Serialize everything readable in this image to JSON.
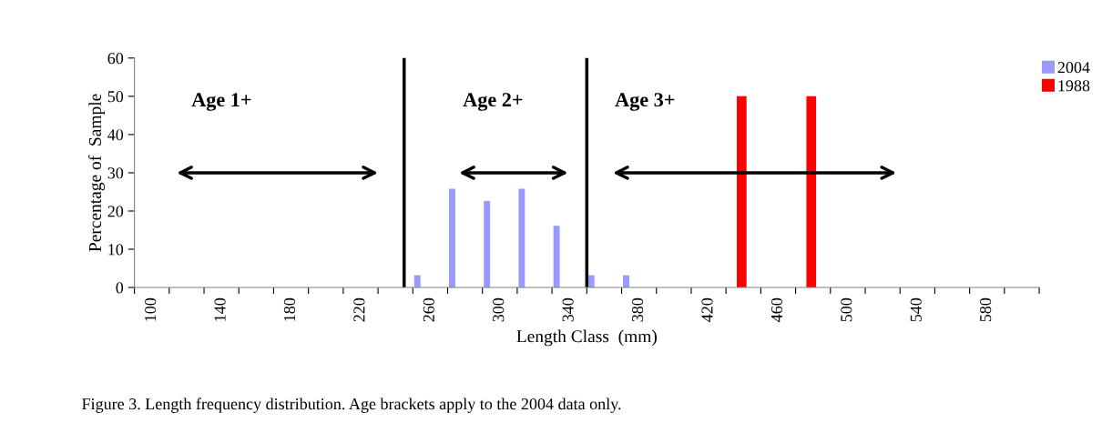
{
  "chart_data": {
    "type": "bar",
    "xlabel": "Length Class  (mm)",
    "ylabel": "Percentage of  Sample",
    "series": [
      {
        "name": "2004",
        "color": "#9999ff",
        "x": [
          260,
          280,
          300,
          320,
          340,
          360,
          380
        ],
        "values": [
          3.2,
          25.8,
          22.6,
          25.8,
          16.1,
          3.2,
          3.2
        ]
      },
      {
        "name": "1988",
        "color": "#ff0000",
        "x": [
          440,
          480
        ],
        "values": [
          50,
          50
        ]
      }
    ],
    "xlim": [
      90,
      610
    ],
    "xticks": [
      {
        "value": 90,
        "label": null
      },
      100,
      {
        "value": 110,
        "label": null
      },
      {
        "value": 130,
        "label": null
      },
      140,
      {
        "value": 150,
        "label": null
      },
      {
        "value": 170,
        "label": null
      },
      180,
      {
        "value": 190,
        "label": null
      },
      {
        "value": 210,
        "label": null
      },
      220,
      {
        "value": 230,
        "label": null
      },
      {
        "value": 250,
        "label": null
      },
      260,
      {
        "value": 270,
        "label": null
      },
      {
        "value": 290,
        "label": null
      },
      300,
      {
        "value": 310,
        "label": null
      },
      {
        "value": 330,
        "label": null
      },
      340,
      {
        "value": 350,
        "label": null
      },
      {
        "value": 370,
        "label": null
      },
      380,
      {
        "value": 390,
        "label": null
      },
      {
        "value": 410,
        "label": null
      },
      420,
      {
        "value": 430,
        "label": null
      },
      {
        "value": 450,
        "label": null
      },
      460,
      {
        "value": 470,
        "label": null
      },
      {
        "value": 490,
        "label": null
      },
      500,
      {
        "value": 510,
        "label": null
      },
      {
        "value": 530,
        "label": null
      },
      540,
      {
        "value": 550,
        "label": null
      },
      {
        "value": 570,
        "label": null
      },
      580,
      {
        "value": 590,
        "label": null
      },
      {
        "value": 610,
        "label": null
      }
    ],
    "ylim": [
      0,
      60
    ],
    "yticks": [
      0,
      10,
      20,
      30,
      40,
      50,
      60
    ],
    "ref_lines": [
      {
        "axis": "x",
        "value": 245,
        "color": "#000000"
      },
      {
        "axis": "x",
        "value": 350,
        "color": "#000000"
      }
    ],
    "annotations": [
      "Age 1+",
      "Age 2+",
      "Age 3+",
      "Figure 3. Length frequency distribution. Age brackets apply to the 2004 data only."
    ],
    "legend": "right",
    "grid": false
  }
}
